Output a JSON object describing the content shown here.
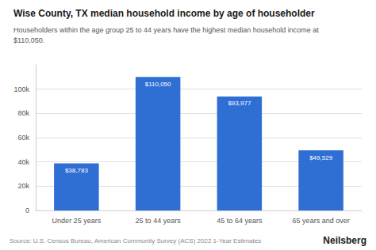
{
  "chart_data": {
    "type": "bar",
    "title": "Wise County, TX median household income by age of householder",
    "subtitle": "Householders within the age group 25 to 44 years have the highest median household income at\n$110,050.",
    "categories": [
      "Under 25 years",
      "25 to 44 years",
      "45 to 64 years",
      "65 years and over"
    ],
    "values": [
      38783,
      110050,
      93977,
      49529
    ],
    "value_labels": [
      "$38,783",
      "$110,050",
      "$93,977",
      "$49,529"
    ],
    "data_labels": true,
    "color": "#2F6FD4",
    "ylim": [
      0,
      120000
    ],
    "yticks": [
      0,
      {
        "value": 20000,
        "label": "20k"
      },
      {
        "value": 40000,
        "label": "40k"
      },
      {
        "value": 60000,
        "label": "60k"
      },
      {
        "value": 80000,
        "label": "80k"
      },
      {
        "value": 100000,
        "label": "100k"
      }
    ],
    "grid": true,
    "annotations": [
      "Source: U.S. Census Bureau, American Community Survey (ACS) 2022 1-Year Estimates",
      "Neilsberg"
    ]
  }
}
